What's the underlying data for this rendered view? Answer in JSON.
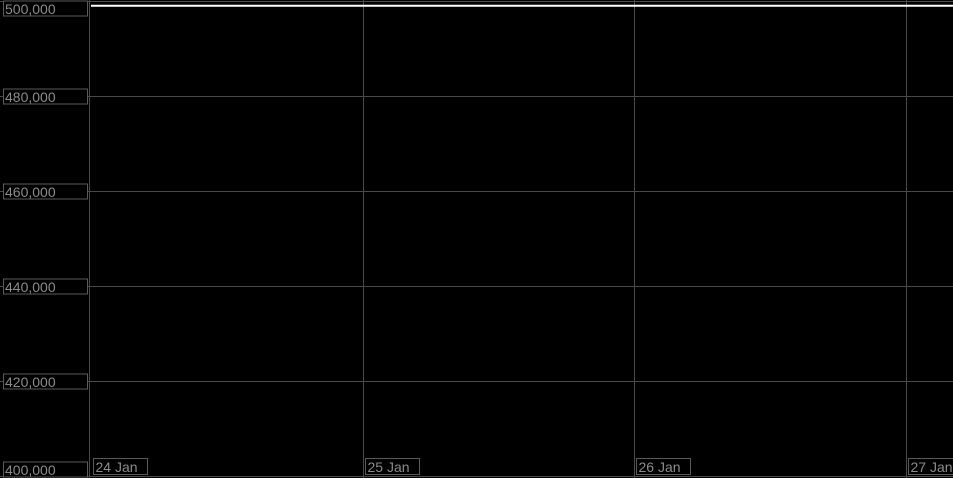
{
  "chart_data": {
    "type": "line",
    "title": "",
    "xlabel": "",
    "ylabel": "",
    "x_tick_labels": [
      "24 Jan",
      "25 Jan",
      "26 Jan",
      "27 Jan"
    ],
    "y_tick_labels": [
      "500,000",
      "480,000",
      "460,000",
      "440,000",
      "420,000",
      "400,000"
    ],
    "y_ticks": [
      500000,
      480000,
      460000,
      440000,
      420000,
      400000
    ],
    "ylim": [
      400000,
      500000
    ],
    "xlim_days": [
      0,
      3.18
    ],
    "grid": true,
    "series": [
      {
        "x_days": [
          0,
          3.18
        ],
        "values": [
          499000,
          499000
        ],
        "color": "#ffffff"
      }
    ],
    "colors": {
      "background": "#000000",
      "grid": "#4a4a4a",
      "label_text": "#8a8a8a",
      "label_border": "#5a5a5a"
    }
  }
}
